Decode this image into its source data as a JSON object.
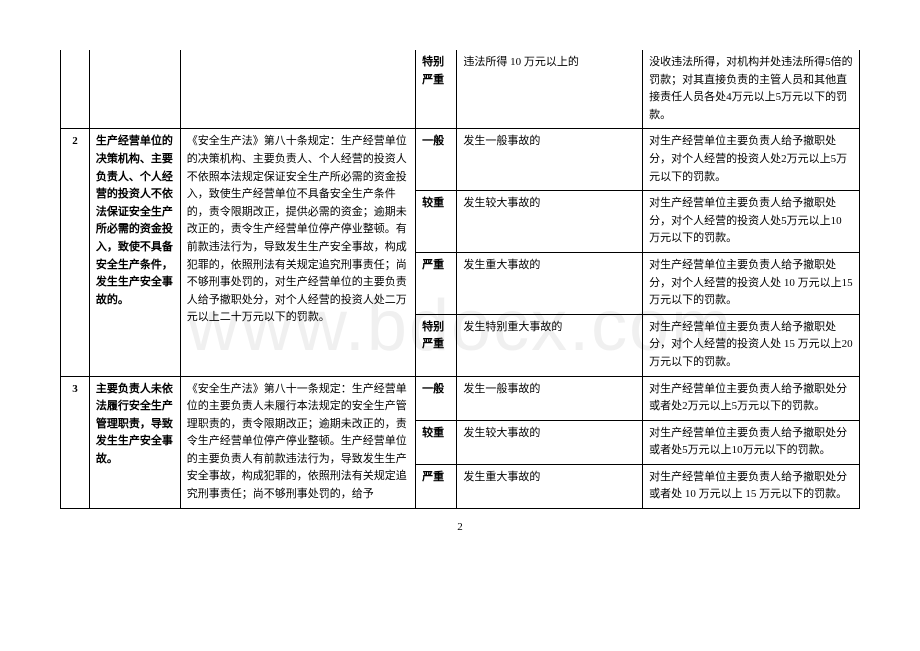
{
  "watermark": "www.bdocx.com",
  "pageNumber": "2",
  "rows": [
    {
      "level": "特别严重",
      "situation": "违法所得 10 万元以上的",
      "penalty": "没收违法所得，对机构并处违法所得5倍的罚款；对其直接负责的主管人员和其他直接责任人员各处4万元以上5万元以下的罚款。"
    },
    {
      "num": "2",
      "item": "生产经营单位的决策机构、主要负责人、个人经营的投资人不依法保证安全生产所必需的资金投入，致使不具备安全生产条件，发生生产安全事故的。",
      "basis": "《安全生产法》第八十条规定：生产经营单位的决策机构、主要负责人、个人经营的投资人不依照本法规定保证安全生产所必需的资金投入，致使生产经营单位不具备安全生产条件的，责令限期改正，提供必需的资金；逾期未改正的，责令生产经营单位停产停业整顿。有前款违法行为，导致发生生产安全事故，构成犯罪的，依照刑法有关规定追究刑事责任；尚不够刑事处罚的，对生产经营单位的主要负责人给予撤职处分，对个人经营的投资人处二万元以上二十万元以下的罚款。",
      "sublevels": [
        {
          "level": "一般",
          "situation": "发生一般事故的",
          "penalty": "对生产经营单位主要负责人给予撤职处分，对个人经营的投资人处2万元以上5万元以下的罚款。"
        },
        {
          "level": "较重",
          "situation": "发生较大事故的",
          "penalty": "对生产经营单位主要负责人给予撤职处分，对个人经营的投资人处5万元以上10 万元以下的罚款。"
        },
        {
          "level": "严重",
          "situation": "发生重大事故的",
          "penalty": "对生产经营单位主要负责人给予撤职处分，对个人经营的投资人处 10 万元以上15 万元以下的罚款。"
        },
        {
          "level": "特别严重",
          "situation": "发生特别重大事故的",
          "penalty": "对生产经营单位主要负责人给予撤职处分，对个人经营的投资人处 15 万元以上20 万元以下的罚款。"
        }
      ]
    },
    {
      "num": "3",
      "item": "主要负责人未依法履行安全生产管理职责，导致发生生产安全事故。",
      "basis": "《安全生产法》第八十一条规定：生产经营单位的主要负责人未履行本法规定的安全生产管理职责的，责令限期改正；逾期未改正的，责令生产经营单位停产停业整顿。生产经营单位的主要负责人有前款违法行为，导致发生生产安全事故，构成犯罪的，依照刑法有关规定追究刑事责任；尚不够刑事处罚的，给予",
      "sublevels": [
        {
          "level": "一般",
          "situation": "发生一般事故的",
          "penalty": "对生产经营单位主要负责人给予撤职处分或者处2万元以上5万元以下的罚款。"
        },
        {
          "level": "较重",
          "situation": "发生较大事故的",
          "penalty": "对生产经营单位主要负责人给予撤职处分或者处5万元以上10万元以下的罚款。"
        },
        {
          "level": "严重",
          "situation": "发生重大事故的",
          "penalty": "对生产经营单位主要负责人给予撤职处分或者处 10 万元以上 15 万元以下的罚款。"
        }
      ]
    }
  ]
}
